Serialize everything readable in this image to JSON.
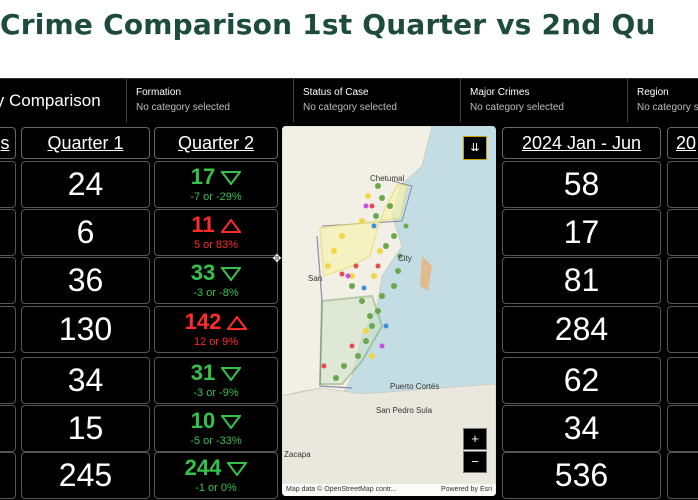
{
  "title": "Crime Comparison 1st Quarter vs 2nd Qu",
  "filter_bar": {
    "first_label": "ly Comparison",
    "filters": [
      {
        "label": "Formation",
        "value": "No category selected"
      },
      {
        "label": "Status of Case",
        "value": "No category selected"
      },
      {
        "label": "Major Crimes",
        "value": "No category selected"
      },
      {
        "label": "Region",
        "value": "No category selected"
      }
    ]
  },
  "columns": {
    "left_partial": "s",
    "q1": "Quarter 1",
    "q2": "Quarter 2",
    "ytd": "2024 Jan - Jun",
    "right_partial": "20"
  },
  "rows": [
    {
      "q1": "24",
      "q2": "17",
      "q2_change": "-7 or -29%",
      "trend": "down",
      "ytd": "58"
    },
    {
      "q1": "6",
      "q2": "11",
      "q2_change": "5 or 83%",
      "trend": "up",
      "ytd": "17"
    },
    {
      "q1": "36",
      "q2": "33",
      "q2_change": "-3 or -8%",
      "trend": "down",
      "ytd": "81"
    },
    {
      "q1": "130",
      "q2": "142",
      "q2_change": "12 or 9%",
      "trend": "up",
      "ytd": "284"
    },
    {
      "q1": "34",
      "q2": "31",
      "q2_change": "-3 or -9%",
      "trend": "down",
      "ytd": "62"
    },
    {
      "q1": "15",
      "q2": "10",
      "q2_change": "-5 or -33%",
      "trend": "down",
      "ytd": "34"
    },
    {
      "q1": "245",
      "q2": "244",
      "q2_change": "-1 or 0%",
      "trend": "down",
      "ytd": "536"
    }
  ],
  "colors": {
    "up": "#ff2b2b",
    "down": "#35c24a",
    "title": "#1d4b3c"
  },
  "map": {
    "labels": {
      "chetumal": "Chetumal",
      "city": "City",
      "san": "San",
      "puerto_cortes": "Puerto Cortés",
      "san_pedro_sula": "San Pedro Sula",
      "zacapa": "Zacapa"
    },
    "attribution_left": "Map data © OpenStreetMap contr...",
    "attribution_right": "Powered by Esri",
    "zoom_in": "+",
    "zoom_out": "−",
    "expand_icon": "chevron-double-down-icon"
  }
}
